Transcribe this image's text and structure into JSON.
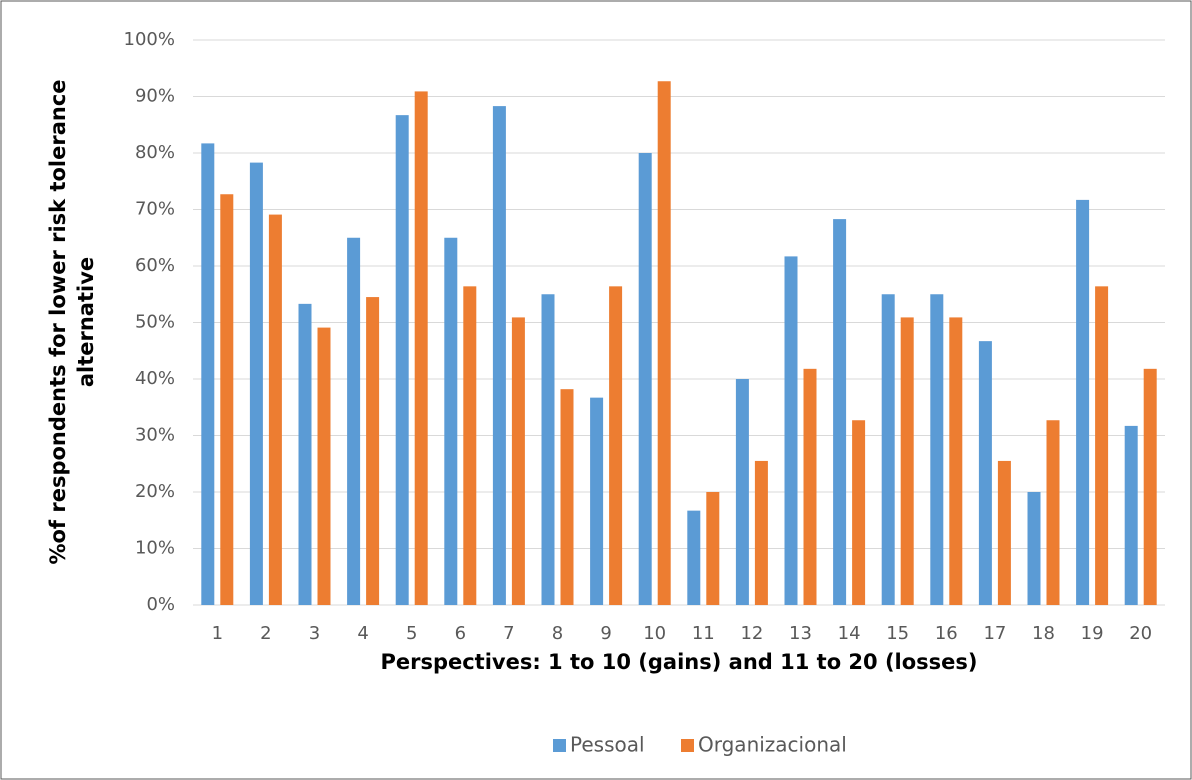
{
  "chart_data": {
    "type": "bar",
    "x_label": "Perspectives: 1 to 10 (gains) and 11 to 20 (losses)",
    "y_label": "%of respondents for lower risk tolerance alternative",
    "categories": [
      "1",
      "2",
      "3",
      "4",
      "5",
      "6",
      "7",
      "8",
      "9",
      "10",
      "11",
      "12",
      "13",
      "14",
      "15",
      "16",
      "17",
      "18",
      "19",
      "20"
    ],
    "series": [
      {
        "name": "Pessoal",
        "color": "#5b9bd5",
        "values": [
          81.7,
          78.3,
          53.3,
          65,
          86.7,
          65,
          88.3,
          55,
          36.7,
          80,
          16.7,
          40,
          61.7,
          68.3,
          55,
          55,
          46.7,
          20,
          71.7,
          31.7
        ]
      },
      {
        "name": "Organizacional",
        "color": "#ed7d31",
        "values": [
          72.7,
          69.1,
          49.1,
          54.5,
          90.9,
          56.4,
          50.9,
          38.2,
          56.4,
          92.7,
          20,
          25.5,
          41.8,
          32.7,
          50.9,
          50.9,
          25.5,
          32.7,
          56.4,
          41.8
        ]
      }
    ],
    "ylim": [
      0,
      100
    ],
    "yticks": [
      {
        "value": 0,
        "label": "0%"
      },
      {
        "value": 10,
        "label": "10%"
      },
      {
        "value": 20,
        "label": "20%"
      },
      {
        "value": 30,
        "label": "30%"
      },
      {
        "value": 40,
        "label": "40%"
      },
      {
        "value": 50,
        "label": "50%"
      },
      {
        "value": 60,
        "label": "60%"
      },
      {
        "value": 70,
        "label": "70%"
      },
      {
        "value": 80,
        "label": "80%"
      },
      {
        "value": 90,
        "label": "90%"
      },
      {
        "value": 100,
        "label": "100%"
      }
    ],
    "grid": true,
    "legend": "bottom"
  }
}
